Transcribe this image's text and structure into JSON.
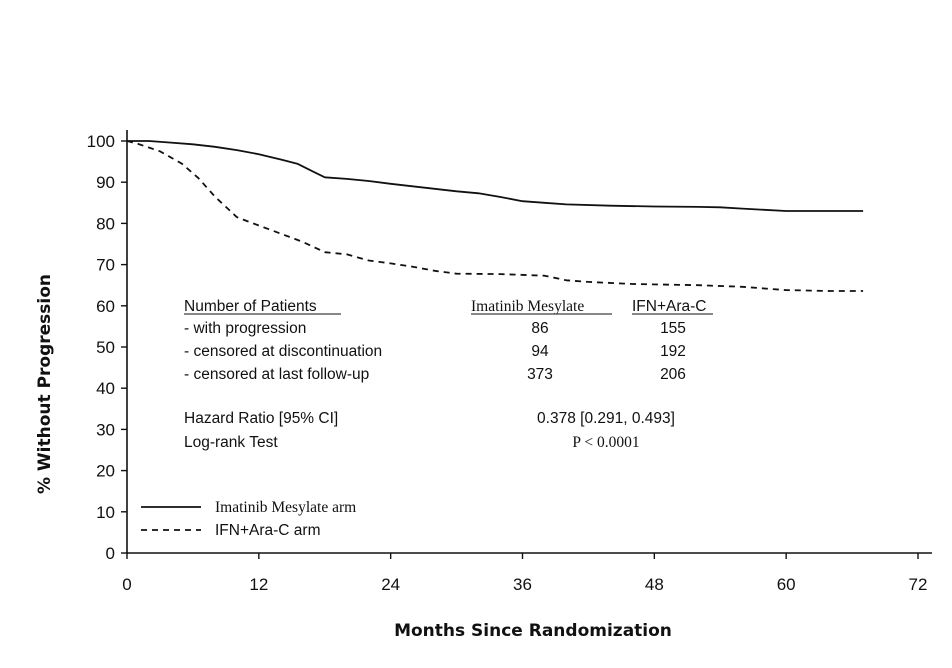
{
  "chart_data": {
    "type": "line",
    "title": "",
    "xlabel": "Months Since Randomization",
    "ylabel": "% Without Progression",
    "xlim": [
      0,
      72
    ],
    "ylim": [
      0,
      100
    ],
    "xticks": [
      "0",
      "12",
      "24",
      "36",
      "48",
      "60",
      "72"
    ],
    "yticks": [
      "0",
      "10",
      "20",
      "30",
      "40",
      "50",
      "60",
      "70",
      "80",
      "90",
      "100"
    ],
    "grid": false,
    "legend_position": "bottom-left",
    "series": [
      {
        "name": "Imatinib Mesylate arm",
        "line_style": "solid",
        "color": "#111111",
        "points": [
          [
            0,
            100
          ],
          [
            2,
            100
          ],
          [
            4,
            99.6
          ],
          [
            6,
            99.2
          ],
          [
            8,
            98.6
          ],
          [
            10,
            97.8
          ],
          [
            12,
            96.8
          ],
          [
            14,
            95.5
          ],
          [
            15.5,
            94.5
          ],
          [
            17,
            92.5
          ],
          [
            18,
            91.2
          ],
          [
            20,
            90.8
          ],
          [
            22,
            90.3
          ],
          [
            24,
            89.6
          ],
          [
            26,
            89
          ],
          [
            28,
            88.4
          ],
          [
            30,
            87.8
          ],
          [
            32,
            87.3
          ],
          [
            34,
            86.4
          ],
          [
            36,
            85.4
          ],
          [
            38,
            85
          ],
          [
            40,
            84.6
          ],
          [
            44,
            84.3
          ],
          [
            48,
            84.1
          ],
          [
            52,
            84
          ],
          [
            54,
            83.9
          ],
          [
            56,
            83.6
          ],
          [
            58,
            83.3
          ],
          [
            60,
            83
          ],
          [
            64,
            83
          ],
          [
            67,
            83
          ]
        ]
      },
      {
        "name": "IFN+Ara-C arm",
        "line_style": "dashed",
        "color": "#111111",
        "points": [
          [
            0,
            100
          ],
          [
            1,
            99.3
          ],
          [
            3,
            97.5
          ],
          [
            5,
            94.5
          ],
          [
            6.5,
            91
          ],
          [
            8,
            86.5
          ],
          [
            9,
            84
          ],
          [
            10,
            81.5
          ],
          [
            12,
            79.5
          ],
          [
            14,
            77.5
          ],
          [
            16,
            75.5
          ],
          [
            18,
            73
          ],
          [
            20,
            72.5
          ],
          [
            22,
            71
          ],
          [
            24,
            70.3
          ],
          [
            26,
            69.5
          ],
          [
            28,
            68.5
          ],
          [
            30,
            67.8
          ],
          [
            34,
            67.7
          ],
          [
            38,
            67.3
          ],
          [
            40,
            66.2
          ],
          [
            42,
            65.8
          ],
          [
            46,
            65.3
          ],
          [
            52,
            65
          ],
          [
            56,
            64.6
          ],
          [
            60,
            63.8
          ],
          [
            64,
            63.6
          ],
          [
            67,
            63.6
          ]
        ]
      }
    ],
    "table": {
      "header": [
        "Number of Patients",
        "Imatinib Mesylate",
        "IFN+Ara-C"
      ],
      "rows": [
        [
          "- with progression",
          "86",
          "155"
        ],
        [
          "- censored at discontinuation",
          "94",
          "192"
        ],
        [
          "- censored at last follow-up",
          "373",
          "206"
        ]
      ],
      "hazard_label": "Hazard Ratio [95% CI]",
      "hazard_value": "0.378 [0.291, 0.493]",
      "logrank_label": "Log-rank Test",
      "logrank_value": "P < 0.0001"
    }
  }
}
